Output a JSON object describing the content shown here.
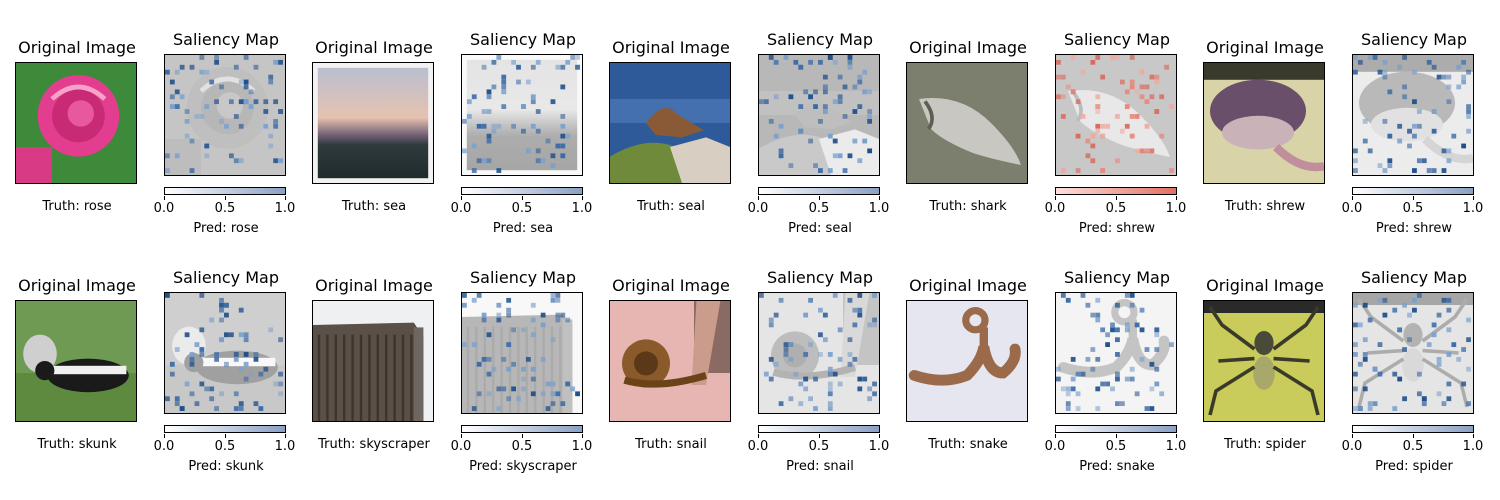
{
  "colors": {
    "blues_bar_start": "#ffffff",
    "blues_bar_end": "#8aa0c4",
    "reds_bar_start": "#fde0dd",
    "reds_bar_end": "#e07060"
  },
  "colorbar_ticks": [
    "0.0",
    "0.5",
    "1.0"
  ],
  "rows": [
    {
      "pairs": [
        {
          "original_title": "Original Image",
          "saliency_title": "Saliency Map",
          "truth": "Truth: rose",
          "pred": "Pred: rose",
          "img": "rose",
          "cmap": "blues"
        },
        {
          "original_title": "Original Image",
          "saliency_title": "Saliency Map",
          "truth": "Truth: sea",
          "pred": "Pred: sea",
          "img": "sea",
          "cmap": "blues"
        },
        {
          "original_title": "Original Image",
          "saliency_title": "Saliency Map",
          "truth": "Truth: seal",
          "pred": "Pred: seal",
          "img": "seal",
          "cmap": "blues"
        },
        {
          "original_title": "Original Image",
          "saliency_title": "Saliency Map",
          "truth": "Truth: shark",
          "pred": "Pred: shrew",
          "img": "shark",
          "cmap": "reds"
        },
        {
          "original_title": "Original Image",
          "saliency_title": "Saliency Map",
          "truth": "Truth: shrew",
          "pred": "Pred: shrew",
          "img": "shrew",
          "cmap": "blues"
        }
      ]
    },
    {
      "pairs": [
        {
          "original_title": "Original Image",
          "saliency_title": "Saliency Map",
          "truth": "Truth: skunk",
          "pred": "Pred: skunk",
          "img": "skunk",
          "cmap": "blues"
        },
        {
          "original_title": "Original Image",
          "saliency_title": "Saliency Map",
          "truth": "Truth: skyscraper",
          "pred": "Pred: skyscraper",
          "img": "skyscraper",
          "cmap": "blues"
        },
        {
          "original_title": "Original Image",
          "saliency_title": "Saliency Map",
          "truth": "Truth: snail",
          "pred": "Pred: snail",
          "img": "snail",
          "cmap": "blues"
        },
        {
          "original_title": "Original Image",
          "saliency_title": "Saliency Map",
          "truth": "Truth: snake",
          "pred": "Pred: snake",
          "img": "snake",
          "cmap": "blues"
        },
        {
          "original_title": "Original Image",
          "saliency_title": "Saliency Map",
          "truth": "Truth: spider",
          "pred": "Pred: spider",
          "img": "spider",
          "cmap": "blues"
        }
      ]
    }
  ]
}
